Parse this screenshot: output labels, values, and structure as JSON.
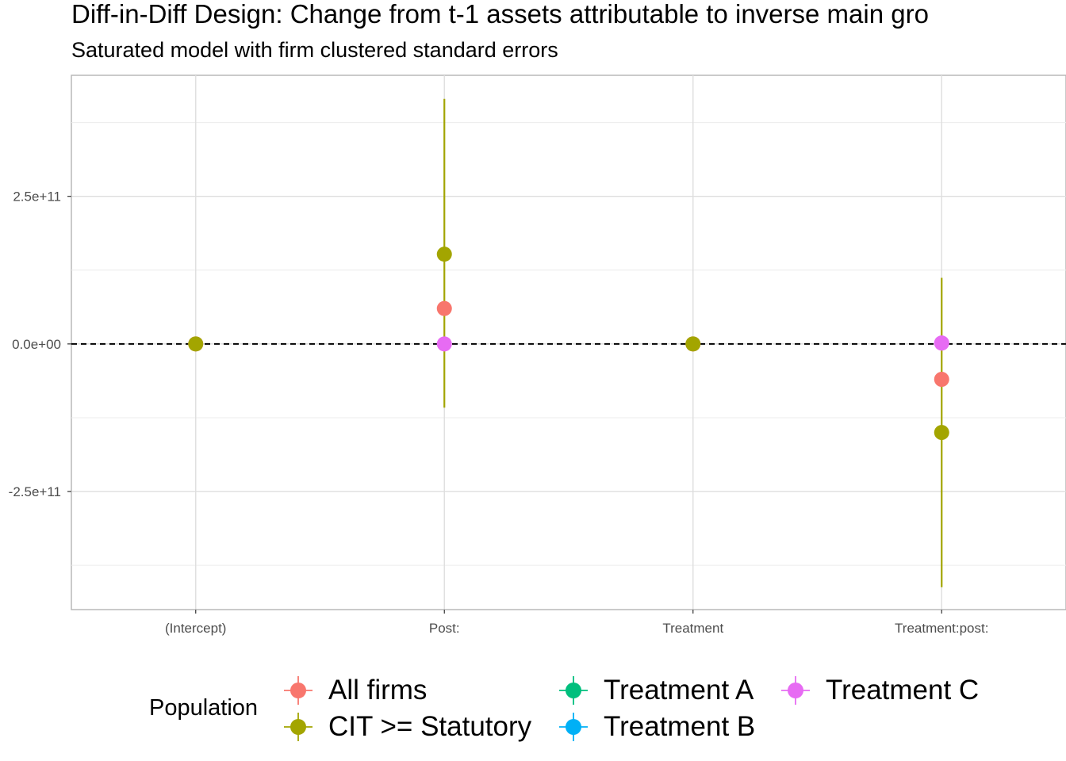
{
  "chart_data": {
    "type": "scatter",
    "title": "Diff-in-Diff Design: Change from t-1 assets attributable to inverse main gro",
    "subtitle": "Saturated model with firm clustered standard errors",
    "xlabel": "",
    "ylabel": "",
    "categories": [
      "(Intercept)",
      "Post:",
      "Treatment",
      "Treatment:post:"
    ],
    "y_ticks": [
      250000000000,
      0,
      -250000000000
    ],
    "y_tick_labels": [
      "2.5e+11",
      "0.0e+00",
      "-2.5e+11"
    ],
    "ylim": [
      -450000000000,
      455000000000
    ],
    "reference_line": 0,
    "grid": true,
    "legend": {
      "title": "Population",
      "position": "bottom"
    },
    "series": [
      {
        "name": "All firms",
        "color": "#F8766D",
        "points": [
          {
            "category": "(Intercept)",
            "estimate": 0
          },
          {
            "category": "Post:",
            "estimate": 60000000000
          },
          {
            "category": "Treatment",
            "estimate": 0
          },
          {
            "category": "Treatment:post:",
            "estimate": -60000000000
          }
        ]
      },
      {
        "name": "CIT >= Statutory",
        "color": "#A3A500",
        "points": [
          {
            "category": "(Intercept)",
            "estimate": 0
          },
          {
            "category": "Post:",
            "estimate": 152000000000,
            "low": -108000000000,
            "high": 415000000000
          },
          {
            "category": "Treatment",
            "estimate": 0
          },
          {
            "category": "Treatment:post:",
            "estimate": -150000000000,
            "low": -412000000000,
            "high": 112000000000
          }
        ]
      },
      {
        "name": "Treatment A",
        "color": "#00BF7D",
        "points": []
      },
      {
        "name": "Treatment B",
        "color": "#00B0F6",
        "points": []
      },
      {
        "name": "Treatment C",
        "color": "#E76BF3",
        "points": [
          {
            "category": "Post:",
            "estimate": 0
          },
          {
            "category": "Treatment:post:",
            "estimate": 1500000000
          }
        ]
      }
    ]
  }
}
